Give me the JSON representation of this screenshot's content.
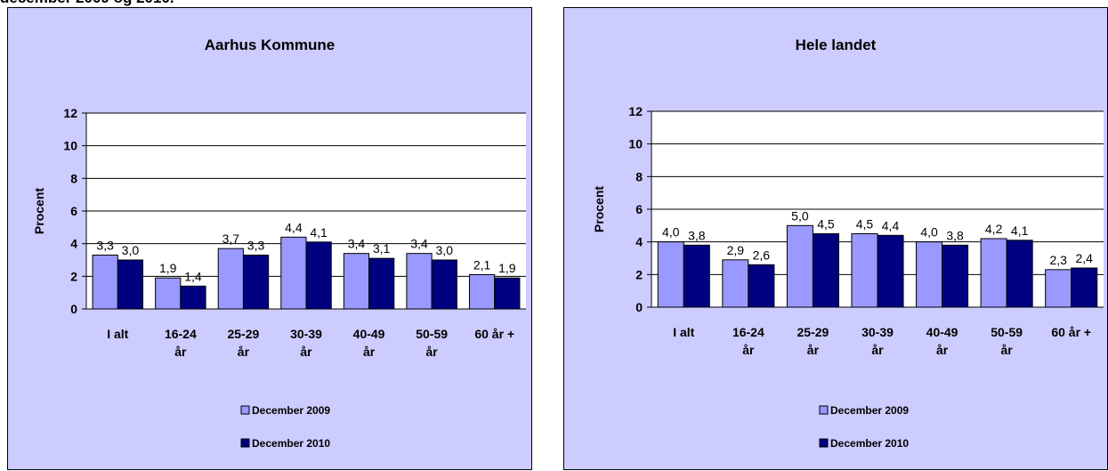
{
  "heading": "december 2009 og 2010.",
  "colors": {
    "panel_bg": "#ccccff",
    "series_2009": "#9999ff",
    "series_2010": "#000080",
    "grid": "#000000"
  },
  "chart_data": [
    {
      "type": "bar",
      "title": "Aarhus Kommune",
      "ylabel": "Procent",
      "ylim": [
        0,
        12
      ],
      "yticks": [
        "0",
        "2",
        "4",
        "6",
        "8",
        "10",
        "12"
      ],
      "grid": true,
      "legend_position": "bottom",
      "categories": [
        [
          "I alt"
        ],
        [
          "16-24",
          "år"
        ],
        [
          "25-29",
          "år"
        ],
        [
          "30-39",
          "år"
        ],
        [
          "40-49",
          "år"
        ],
        [
          "50-59",
          "år"
        ],
        [
          "60 år +"
        ]
      ],
      "series": [
        {
          "name": "December 2009",
          "values": [
            3.3,
            1.9,
            3.7,
            4.4,
            3.4,
            3.4,
            2.1
          ],
          "labels": [
            "3,3",
            "1,9",
            "3,7",
            "4,4",
            "3,4",
            "3,4",
            "2,1"
          ]
        },
        {
          "name": "December 2010",
          "values": [
            3.0,
            1.4,
            3.3,
            4.1,
            3.1,
            3.0,
            1.9
          ],
          "labels": [
            "3,0",
            "1,4",
            "3,3",
            "4,1",
            "3,1",
            "3,0",
            "1,9"
          ]
        }
      ]
    },
    {
      "type": "bar",
      "title": "Hele landet",
      "ylabel": "Procent",
      "ylim": [
        0,
        12
      ],
      "yticks": [
        "0",
        "2",
        "4",
        "6",
        "8",
        "10",
        "12"
      ],
      "grid": true,
      "legend_position": "bottom",
      "categories": [
        [
          "I alt"
        ],
        [
          "16-24",
          "år"
        ],
        [
          "25-29",
          "år"
        ],
        [
          "30-39",
          "år"
        ],
        [
          "40-49",
          "år"
        ],
        [
          "50-59",
          "år"
        ],
        [
          "60 år +"
        ]
      ],
      "series": [
        {
          "name": "December 2009",
          "values": [
            4.0,
            2.9,
            5.0,
            4.5,
            4.0,
            4.2,
            2.3
          ],
          "labels": [
            "4,0",
            "2,9",
            "5,0",
            "4,5",
            "4,0",
            "4,2",
            "2,3"
          ]
        },
        {
          "name": "December 2010",
          "values": [
            3.8,
            2.6,
            4.5,
            4.4,
            3.8,
            4.1,
            2.4
          ],
          "labels": [
            "3,8",
            "2,6",
            "4,5",
            "4,4",
            "3,8",
            "4,1",
            "2,4"
          ]
        }
      ]
    }
  ]
}
